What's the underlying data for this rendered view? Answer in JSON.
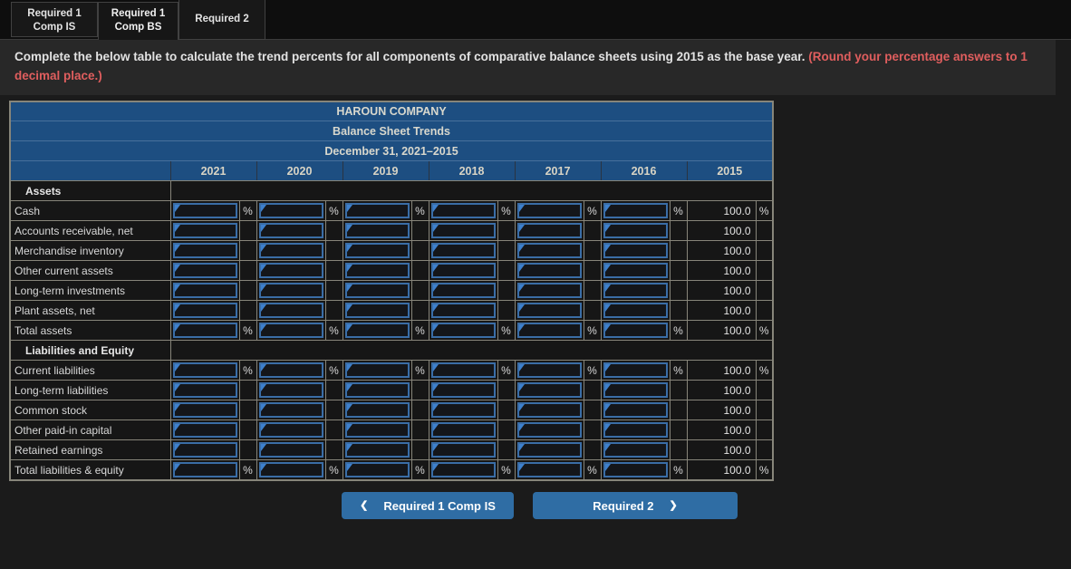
{
  "tabs": [
    {
      "id": "required-1-comp-is",
      "lines": [
        "Required 1",
        "Comp IS"
      ],
      "active": false
    },
    {
      "id": "required-1-comp-bs",
      "lines": [
        "Required 1",
        "Comp BS"
      ],
      "active": true
    },
    {
      "id": "required-2",
      "lines": [
        "Required 2"
      ],
      "active": false
    }
  ],
  "instruction": {
    "main": "Complete the below table to calculate the trend percents for all components of comparative balance sheets using 2015 as the base year. ",
    "note": "(Round your percentage answers to 1 decimal place.)"
  },
  "table": {
    "title_lines": [
      "HAROUN COMPANY",
      "Balance Sheet Trends",
      "December 31, 2021–2015"
    ],
    "years": [
      "2021",
      "2020",
      "2019",
      "2018",
      "2017",
      "2016",
      "2015"
    ],
    "percent_symbol": "%",
    "input_value": "",
    "rows": [
      {
        "label": "Assets",
        "type": "section"
      },
      {
        "label": "Cash",
        "type": "input",
        "percent": true,
        "base_value": "100.0"
      },
      {
        "label": "Accounts receivable, net",
        "type": "input",
        "percent": false,
        "base_value": "100.0"
      },
      {
        "label": "Merchandise inventory",
        "type": "input",
        "percent": false,
        "base_value": "100.0"
      },
      {
        "label": "Other current assets",
        "type": "input",
        "percent": false,
        "base_value": "100.0"
      },
      {
        "label": "Long-term investments",
        "type": "input",
        "percent": false,
        "base_value": "100.0"
      },
      {
        "label": "Plant assets, net",
        "type": "input",
        "percent": false,
        "base_value": "100.0"
      },
      {
        "label": "Total assets",
        "type": "input",
        "percent": true,
        "base_value": "100.0"
      },
      {
        "label": "Liabilities and Equity",
        "type": "section"
      },
      {
        "label": "Current liabilities",
        "type": "input",
        "percent": true,
        "base_value": "100.0"
      },
      {
        "label": "Long-term liabilities",
        "type": "input",
        "percent": false,
        "base_value": "100.0"
      },
      {
        "label": "Common stock",
        "type": "input",
        "percent": false,
        "base_value": "100.0"
      },
      {
        "label": "Other paid-in capital",
        "type": "input",
        "percent": false,
        "base_value": "100.0"
      },
      {
        "label": "Retained earnings",
        "type": "input",
        "percent": false,
        "base_value": "100.0"
      },
      {
        "label": "Total liabilities & equity",
        "type": "input",
        "percent": true,
        "base_value": "100.0"
      }
    ]
  },
  "footer": {
    "prev_button": {
      "chevron": "❮",
      "label": "Required 1 Comp IS"
    },
    "next_button": {
      "label": "Required 2",
      "chevron": "❯"
    }
  },
  "colors": {
    "header_blue": "#1d4e81",
    "button_blue": "#2f6da4",
    "input_border_blue": "#3a6da6",
    "marker_blue": "#3e80cc",
    "grid_line": "#87857a",
    "note_red": "#e05e5e"
  }
}
